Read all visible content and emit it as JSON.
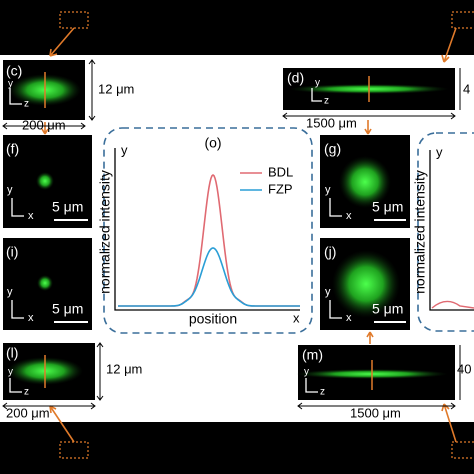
{
  "panels": {
    "c": {
      "label": "(c)",
      "axes": [
        "y",
        "z"
      ],
      "height": "12 μm",
      "width": "200 μm"
    },
    "d": {
      "label": "(d)",
      "axes": [
        "y",
        "z"
      ],
      "height": "4",
      "width": "1500 μm"
    },
    "f": {
      "label": "(f)",
      "axes": [
        "y",
        "x"
      ],
      "scale": "5 μm"
    },
    "i": {
      "label": "(i)",
      "axes": [
        "y",
        "x"
      ],
      "scale": "5 μm"
    },
    "g": {
      "label": "(g)",
      "axes": [
        "y",
        "x"
      ],
      "scale": "5 μm"
    },
    "j": {
      "label": "(j)",
      "axes": [
        "y",
        "x"
      ],
      "scale": "5 μm"
    },
    "l": {
      "label": "(l)",
      "axes": [
        "y",
        "z"
      ],
      "height": "12 μm",
      "width": "200 μm"
    },
    "m": {
      "label": "(m)",
      "axes": [
        "y",
        "z"
      ],
      "height": "40",
      "width": "1500 μm"
    }
  },
  "plot_o": {
    "label": "(o)",
    "y_axis": "y",
    "x_axis": "x",
    "y_label": "normalized intensity",
    "x_label": "position",
    "legend": [
      {
        "name": "BDL",
        "color": "#e06a72"
      },
      {
        "name": "FZP",
        "color": "#2a9ed6"
      }
    ]
  },
  "plot_side": {
    "y_axis": "y",
    "y_label": "normalized intensity"
  }
}
